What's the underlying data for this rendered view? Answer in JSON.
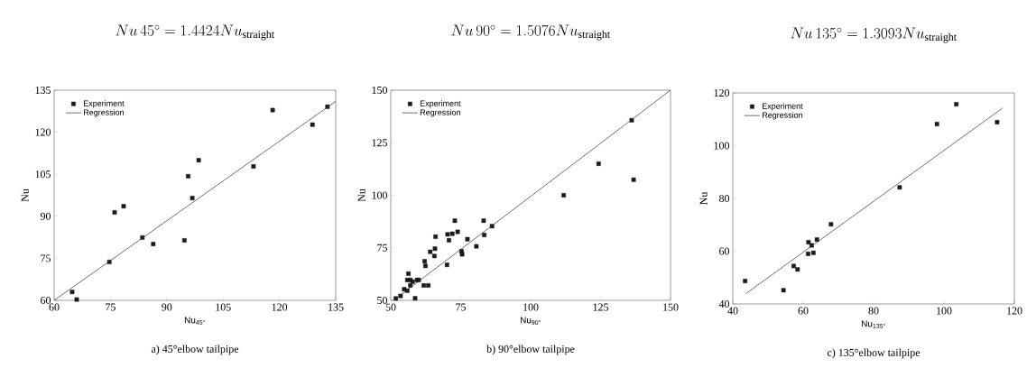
{
  "chart_data": [
    {
      "type": "scatter",
      "title": "Nu\\,45^{\\circ} = 1.4424Nu_{\\mathrm{straight}}",
      "xlabel": "Nu$_{45°}$",
      "ylabel": "Nu",
      "annotations": [
        "a) 45°elbow tailpipe"
      ],
      "xlim": [
        60,
        135
      ],
      "ylim": [
        60,
        135
      ],
      "xticks": [
        60,
        75,
        90,
        105,
        120,
        135
      ],
      "yticks": [
        60,
        75,
        90,
        105,
        120,
        135
      ],
      "legend": "top left",
      "series": [
        {
          "name": "Experiment",
          "marker": "square",
          "color": "#1a1a1a",
          "x": [
            64.8,
            66.0,
            74.7,
            76.1,
            78.5,
            83.5,
            86.4,
            94.7,
            95.7,
            96.8,
            98.5,
            113.1,
            118.2,
            128.8,
            132.8
          ],
          "values": [
            63.0,
            60.3,
            73.7,
            91.4,
            93.6,
            82.4,
            80.1,
            81.4,
            104.3,
            96.5,
            110.0,
            107.8,
            127.9,
            122.7,
            129.1
          ]
        },
        {
          "name": "Regression",
          "type": "line",
          "color": "#333333",
          "x": [
            60,
            135
          ],
          "values": [
            60,
            131
          ]
        }
      ]
    },
    {
      "type": "scatter",
      "title": "Nu\\,90^{\\circ} = 1.5076Nu_{\\mathrm{straight}}",
      "xlabel": "Nu$_{90°}$",
      "ylabel": "Nu",
      "annotations": [
        "b) 90°elbow tailpipe"
      ],
      "xlim": [
        50,
        150
      ],
      "ylim": [
        50,
        150
      ],
      "xticks": [
        50,
        75,
        100,
        125,
        150
      ],
      "yticks": [
        50,
        75,
        100,
        125,
        150
      ],
      "legend": "top left",
      "series": [
        {
          "name": "Experiment",
          "marker": "square",
          "color": "#1a1a1a",
          "x": [
            51.8,
            53.5,
            54.8,
            55.9,
            56.3,
            55.9,
            57.0,
            57.0,
            57.8,
            58.7,
            59.4,
            60.0,
            61.8,
            63.4,
            62.1,
            62.4,
            64.1,
            65.6,
            65.8,
            66.0,
            70.1,
            70.3,
            70.8,
            72.0,
            72.9,
            73.9,
            75.3,
            75.5,
            77.4,
            80.6,
            83.2,
            83.4,
            86.2,
            111.8,
            124.3,
            136.8,
            136.1
          ],
          "values": [
            50.9,
            52.1,
            55.3,
            54.6,
            62.7,
            59.7,
            59.7,
            57.1,
            58.9,
            51.0,
            59.7,
            59.7,
            57.1,
            57.1,
            68.6,
            66.4,
            73.1,
            71.1,
            74.6,
            80.3,
            66.9,
            81.4,
            78.6,
            81.7,
            87.9,
            82.6,
            73.4,
            71.9,
            79.1,
            75.7,
            87.9,
            81.1,
            85.3,
            100.0,
            115.0,
            107.4,
            135.7
          ]
        },
        {
          "name": "Regression",
          "type": "line",
          "color": "#333333",
          "x": [
            51,
            150
          ],
          "values": [
            50,
            150
          ]
        }
      ]
    },
    {
      "type": "scatter",
      "title": "Nu\\,135^{\\circ} = 1.3093Nu_{\\mathrm{straight}}",
      "xlabel": "Nu$_{135°}$",
      "ylabel": "Nu",
      "annotations": [
        "c) 135°elbow tailpipe"
      ],
      "xlim": [
        40,
        120
      ],
      "ylim": [
        40,
        120
      ],
      "xticks": [
        40,
        60,
        80,
        100,
        120
      ],
      "yticks": [
        40,
        60,
        80,
        100,
        120
      ],
      "legend": "top left",
      "series": [
        {
          "name": "Experiment",
          "marker": "square",
          "color": "#1a1a1a",
          "x": [
            43.5,
            54.4,
            57.3,
            58.4,
            61.4,
            61.5,
            62.4,
            62.9,
            63.9,
            67.9,
            87.4,
            98.0,
            103.5,
            115.1
          ],
          "values": [
            48.7,
            45.2,
            54.4,
            53.1,
            59.0,
            63.4,
            62.2,
            59.4,
            64.4,
            70.2,
            84.2,
            108.2,
            115.7,
            108.9
          ]
        },
        {
          "name": "Regression",
          "type": "line",
          "color": "#333333",
          "x": [
            43.7,
            116.7
          ],
          "values": [
            43.9,
            114.3
          ]
        }
      ]
    }
  ]
}
